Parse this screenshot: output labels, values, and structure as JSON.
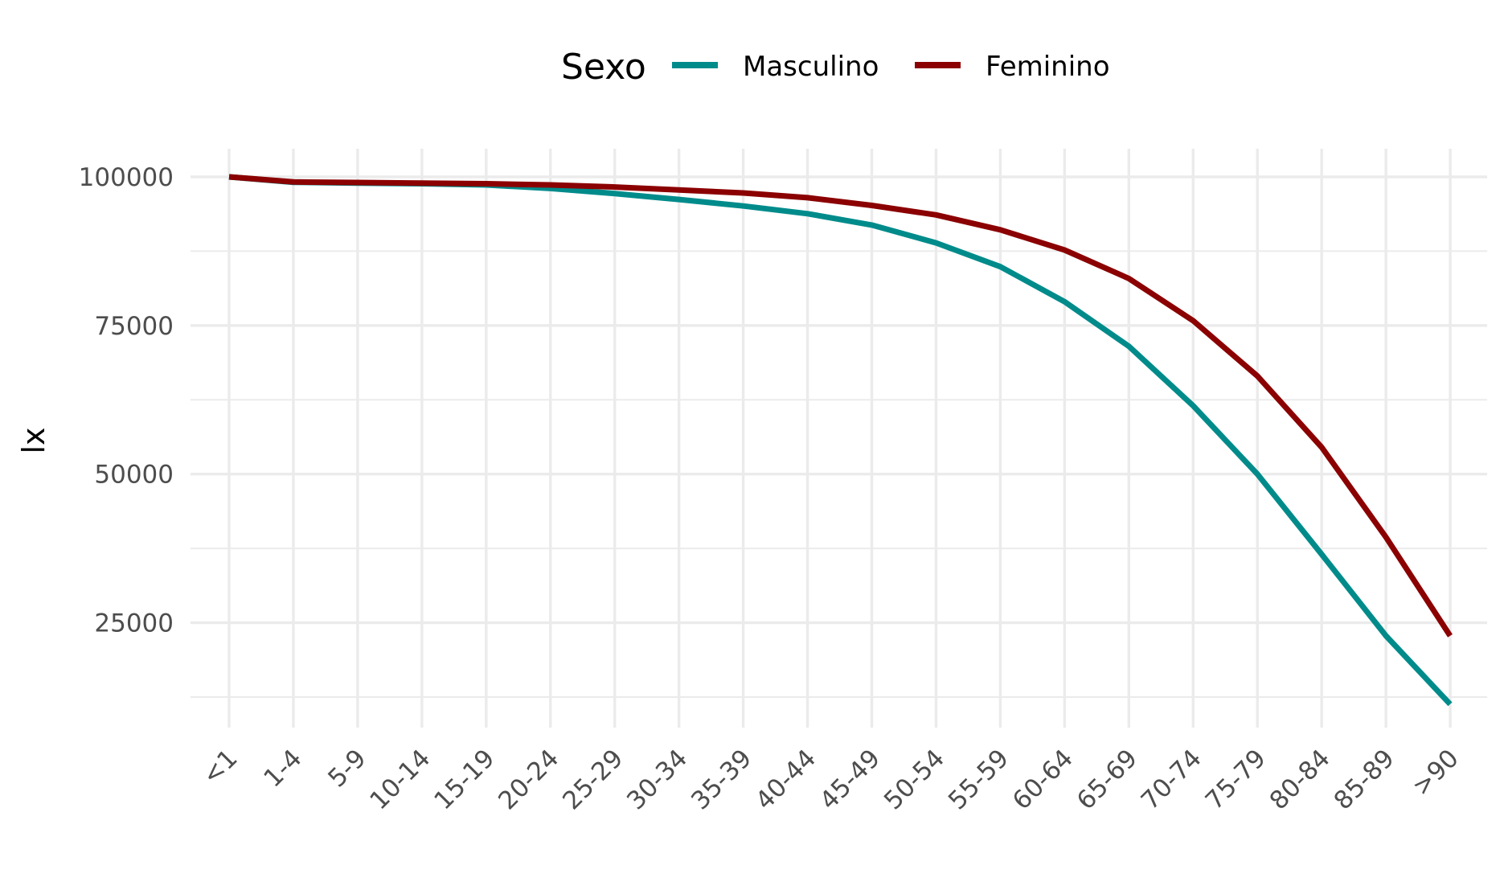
{
  "chart_data": {
    "type": "line",
    "xlabel": "",
    "ylabel": "lx",
    "ylim": [
      5000,
      105000
    ],
    "yticks": [
      25000,
      50000,
      75000,
      100000
    ],
    "ytick_labels": [
      "25000",
      "50000",
      "75000",
      "100000"
    ],
    "grid": true,
    "legend": {
      "title": "Sexo",
      "position": "top"
    },
    "categories": [
      "<1",
      "1-4",
      "5-9",
      "10-14",
      "15-19",
      "20-24",
      "25-29",
      "30-34",
      "35-39",
      "40-44",
      "45-49",
      "50-54",
      "55-59",
      "60-64",
      "65-69",
      "70-74",
      "75-79",
      "80-84",
      "85-89",
      ">90"
    ],
    "series": [
      {
        "name": "Masculino",
        "color": "#008B8B",
        "values": [
          100000,
          99100,
          98950,
          98850,
          98650,
          98050,
          97200,
          96200,
          95100,
          93800,
          91900,
          88900,
          84900,
          79000,
          71500,
          61500,
          50000,
          36500,
          22800,
          11300
        ]
      },
      {
        "name": "Feminino",
        "color": "#8B0000",
        "values": [
          100000,
          99150,
          99050,
          98950,
          98850,
          98650,
          98300,
          97800,
          97300,
          96500,
          95200,
          93600,
          91100,
          87700,
          82900,
          75800,
          66500,
          54500,
          39400,
          22800
        ]
      }
    ]
  }
}
